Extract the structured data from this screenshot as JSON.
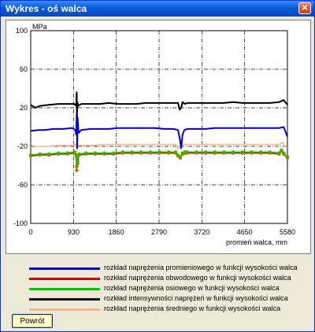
{
  "window": {
    "title": "Wykres - oś walca",
    "close_glyph": "✕"
  },
  "chart_data": {
    "type": "line",
    "ylabel": "MPa",
    "xlabel": "promień walca, mm",
    "xlim": [
      0,
      5580
    ],
    "ylim": [
      -100,
      100
    ],
    "x_ticks": [
      0,
      930,
      1860,
      2790,
      3720,
      4650,
      5580
    ],
    "y_ticks": [
      100,
      60,
      20,
      -20,
      -60,
      -100
    ],
    "grid": true,
    "series": [
      {
        "name": "rozkład naprężenia promieniowego w funkcji wysokości walca",
        "color": "#0000c8",
        "x": [
          0,
          180,
          300,
          500,
          700,
          900,
          970,
          990,
          1000,
          1010,
          1020,
          1040,
          1100,
          1300,
          1500,
          1700,
          1900,
          2100,
          2300,
          2500,
          2700,
          2900,
          3100,
          3200,
          3240,
          3270,
          3300,
          3340,
          3400,
          3600,
          3800,
          4000,
          4200,
          4400,
          4600,
          4800,
          5000,
          5200,
          5400,
          5500,
          5580
        ],
        "y": [
          -4,
          -3,
          -3,
          -2,
          -2,
          -1,
          -3,
          -8,
          14,
          -22,
          10,
          -6,
          -3,
          -2,
          -2,
          -2,
          -1,
          -1,
          -1,
          -1,
          -1,
          -2,
          -2,
          -3,
          -12,
          -22,
          -8,
          -3,
          -2,
          -2,
          -2,
          -1,
          -1,
          -1,
          -1,
          -1,
          -1,
          -1,
          -1,
          0,
          -10
        ]
      },
      {
        "name": "rozkład naprężenia obwodowego w funkcji wysokości walca",
        "color": "#d80000",
        "x": [
          0,
          200,
          400,
          600,
          800,
          950,
          990,
          1000,
          1010,
          1020,
          1050,
          1200,
          1400,
          1600,
          1800,
          2000,
          2200,
          2400,
          2600,
          2800,
          3000,
          3150,
          3200,
          3250,
          3300,
          3350,
          3400,
          3600,
          3800,
          4000,
          4200,
          4400,
          4600,
          4800,
          5000,
          5200,
          5400,
          5450,
          5500,
          5580
        ],
        "y": [
          -30,
          -29,
          -29,
          -28,
          -28,
          -27,
          -30,
          -45,
          -31,
          -38,
          -29,
          -28,
          -28,
          -28,
          -28,
          -27,
          -27,
          -27,
          -27,
          -27,
          -27,
          -27,
          -30,
          -32,
          -28,
          -27,
          -27,
          -27,
          -27,
          -27,
          -27,
          -27,
          -27,
          -27,
          -27,
          -27,
          -28,
          -25,
          -28,
          -32
        ]
      },
      {
        "name": "rozkład naprężenia osiowego w funkcji wysokości walca",
        "color": "#00c800",
        "x": [
          0,
          200,
          400,
          600,
          800,
          950,
          990,
          1000,
          1010,
          1020,
          1050,
          1200,
          1400,
          1600,
          1800,
          2000,
          2200,
          2400,
          2600,
          2800,
          3000,
          3150,
          3200,
          3250,
          3300,
          3350,
          3400,
          3600,
          3800,
          4000,
          4200,
          4400,
          4600,
          4800,
          5000,
          5200,
          5400,
          5450,
          5500,
          5580
        ],
        "y": [
          -29,
          -28,
          -28,
          -27,
          -27,
          -26,
          -29,
          -41,
          -30,
          -36,
          -28,
          -27,
          -27,
          -27,
          -27,
          -26,
          -26,
          -26,
          -26,
          -26,
          -26,
          -26,
          -29,
          -31,
          -27,
          -26,
          -26,
          -26,
          -26,
          -26,
          -26,
          -26,
          -26,
          -26,
          -26,
          -26,
          -27,
          -24,
          -27,
          -31
        ]
      },
      {
        "name": "rozkład intensywności naprężeń w funkcji wysokości walca",
        "color": "#000000",
        "x": [
          0,
          100,
          200,
          400,
          600,
          800,
          950,
          990,
          1000,
          1005,
          1015,
          1030,
          1100,
          1300,
          1500,
          1700,
          1900,
          2100,
          2300,
          2500,
          2700,
          2900,
          3100,
          3200,
          3240,
          3270,
          3300,
          3350,
          3400,
          3600,
          3800,
          4000,
          4200,
          4400,
          4600,
          4800,
          5000,
          5200,
          5400,
          5500,
          5580
        ],
        "y": [
          23,
          20,
          22,
          23,
          24,
          24,
          24,
          22,
          36,
          10,
          26,
          22,
          24,
          24,
          24,
          25,
          24,
          24,
          24,
          25,
          25,
          25,
          25,
          25,
          18,
          20,
          26,
          24,
          25,
          25,
          25,
          25,
          25,
          26,
          25,
          25,
          25,
          25,
          26,
          28,
          23
        ]
      },
      {
        "name": "rozkład naprężenia średniego w funkcji wysokości walca",
        "color": "#f7b58a",
        "x": [
          0,
          200,
          400,
          600,
          800,
          950,
          990,
          1000,
          1010,
          1050,
          1200,
          1400,
          1600,
          1800,
          2000,
          2200,
          2400,
          2600,
          2800,
          3000,
          3150,
          3200,
          3250,
          3300,
          3350,
          3400,
          3600,
          3800,
          4000,
          4200,
          4400,
          4600,
          4800,
          5000,
          5200,
          5400,
          5480,
          5500,
          5580
        ],
        "y": [
          -21,
          -20,
          -20,
          -19,
          -19,
          -19,
          -17,
          -26,
          -20,
          -19,
          -19,
          -19,
          -18,
          -18,
          -18,
          -18,
          -18,
          -18,
          -18,
          -18,
          -18,
          -23,
          -21,
          -18,
          -18,
          -18,
          -18,
          -18,
          -18,
          -18,
          -18,
          -18,
          -18,
          -18,
          -18,
          -18,
          -16,
          -19,
          -22
        ]
      }
    ]
  },
  "button": {
    "label": "Powrót"
  }
}
